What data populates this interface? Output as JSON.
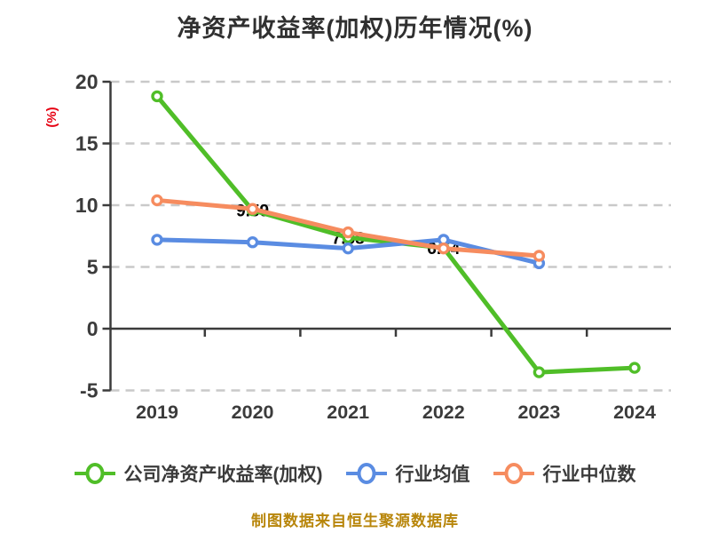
{
  "title": "净资产收益率(加权)历年情况(%)",
  "caption": "制图数据来自恒生聚源数据库",
  "colors": {
    "title_text": "#303030",
    "axis": "#3b3b3b",
    "tick_text": "#3b3b3b",
    "grid": "#c9c9c9",
    "ylabel_text": "#e60012",
    "caption_text": "#b8860b",
    "point_label": "#000000",
    "marker_fill": "#ffffff"
  },
  "chart_data": {
    "type": "line",
    "title": "净资产收益率(加权)历年情况(%)",
    "xlabel": "",
    "ylabel": "(%)",
    "categories": [
      "2019",
      "2020",
      "2021",
      "2022",
      "2023",
      "2024"
    ],
    "yticks": [
      20,
      15,
      10,
      5,
      0,
      -5
    ],
    "ylim": [
      -5,
      20
    ],
    "grid": "horizontal-dashed",
    "legend_position": "bottom",
    "series": [
      {
        "name": "公司净资产收益率(加权)",
        "color": "#50be28",
        "values": [
          18.82,
          9.59,
          7.38,
          6.54,
          -3.53,
          -3.17
        ],
        "point_labels": [
          null,
          "9.59",
          "7.38",
          "6.54",
          null,
          null
        ]
      },
      {
        "name": "行业均值",
        "color": "#5a8ce2",
        "values": [
          7.2,
          7.0,
          6.5,
          7.2,
          5.3,
          null
        ],
        "point_labels": [
          null,
          null,
          null,
          null,
          null,
          null
        ]
      },
      {
        "name": "行业中位数",
        "color": "#f68c5f",
        "values": [
          10.4,
          9.7,
          7.8,
          6.5,
          5.9,
          null
        ],
        "point_labels": [
          null,
          null,
          null,
          null,
          null,
          null
        ]
      }
    ]
  }
}
